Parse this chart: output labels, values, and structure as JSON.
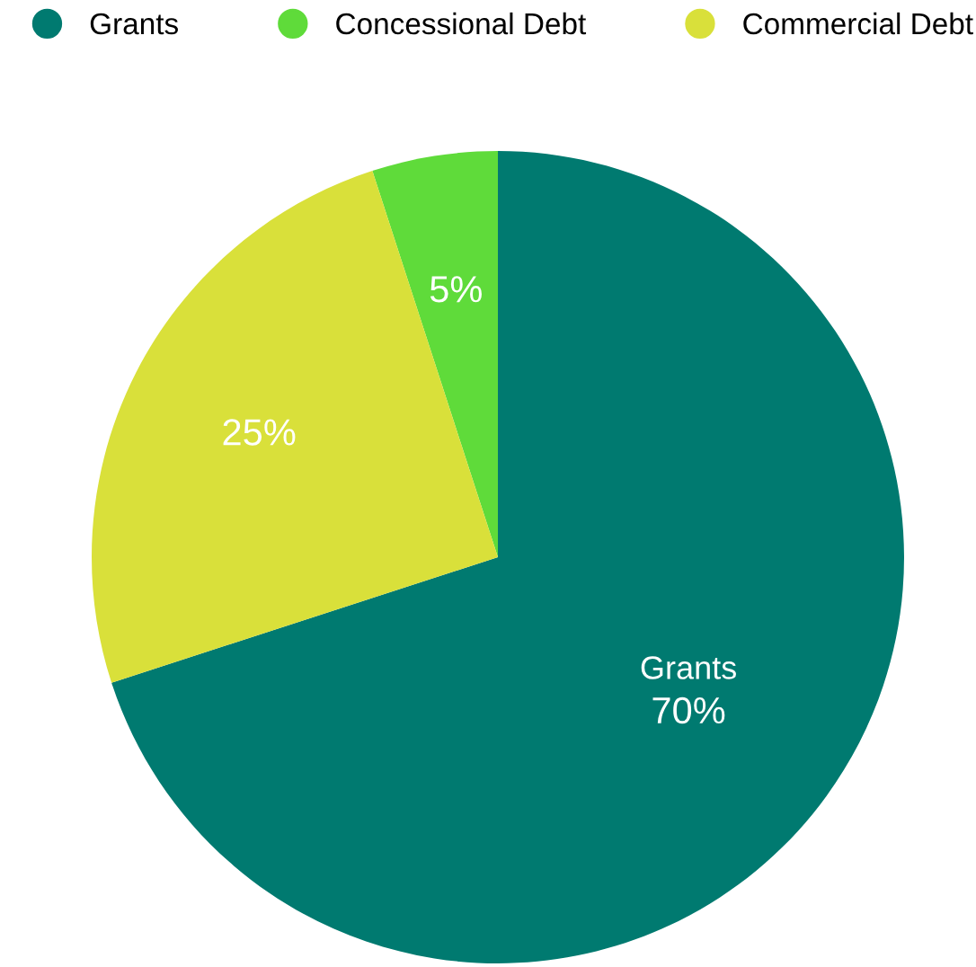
{
  "chart_data": {
    "type": "pie",
    "categories": [
      "Grants",
      "Concessional Debt",
      "Commercial Debt"
    ],
    "values": [
      70,
      5,
      25
    ],
    "colors": [
      "#007a70",
      "#5fdb3a",
      "#d9e03a"
    ],
    "value_labels": [
      "70%",
      "5%",
      "25%"
    ],
    "annotations": [
      {
        "text": "Grants",
        "x": "Grants"
      }
    ],
    "legend": "top left"
  }
}
